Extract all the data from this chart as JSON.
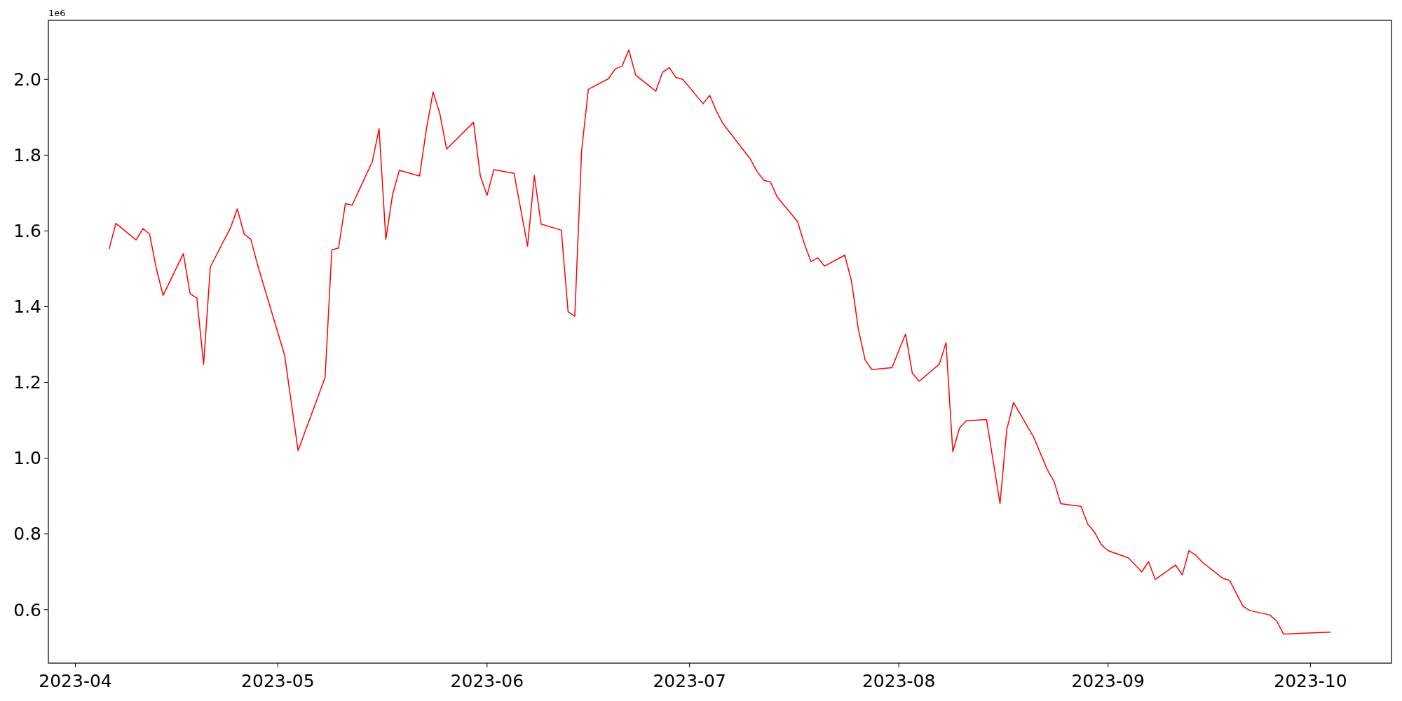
{
  "chart_data": {
    "type": "line",
    "x": [
      "2023-04-06",
      "2023-04-07",
      "2023-04-10",
      "2023-04-11",
      "2023-04-12",
      "2023-04-13",
      "2023-04-14",
      "2023-04-17",
      "2023-04-18",
      "2023-04-19",
      "2023-04-20",
      "2023-04-21",
      "2023-04-24",
      "2023-04-25",
      "2023-04-26",
      "2023-04-27",
      "2023-04-28",
      "2023-05-02",
      "2023-05-04",
      "2023-05-08",
      "2023-05-09",
      "2023-05-10",
      "2023-05-11",
      "2023-05-12",
      "2023-05-15",
      "2023-05-16",
      "2023-05-17",
      "2023-05-18",
      "2023-05-19",
      "2023-05-22",
      "2023-05-23",
      "2023-05-24",
      "2023-05-25",
      "2023-05-26",
      "2023-05-30",
      "2023-05-31",
      "2023-06-01",
      "2023-06-02",
      "2023-06-05",
      "2023-06-07",
      "2023-06-08",
      "2023-06-09",
      "2023-06-12",
      "2023-06-13",
      "2023-06-14",
      "2023-06-15",
      "2023-06-16",
      "2023-06-19",
      "2023-06-20",
      "2023-06-21",
      "2023-06-22",
      "2023-06-23",
      "2023-06-26",
      "2023-06-27",
      "2023-06-28",
      "2023-06-29",
      "2023-06-30",
      "2023-07-03",
      "2023-07-04",
      "2023-07-05",
      "2023-07-06",
      "2023-07-10",
      "2023-07-11",
      "2023-07-12",
      "2023-07-13",
      "2023-07-14",
      "2023-07-17",
      "2023-07-18",
      "2023-07-19",
      "2023-07-20",
      "2023-07-21",
      "2023-07-24",
      "2023-07-25",
      "2023-07-26",
      "2023-07-27",
      "2023-07-28",
      "2023-07-31",
      "2023-08-01",
      "2023-08-02",
      "2023-08-03",
      "2023-08-04",
      "2023-08-07",
      "2023-08-08",
      "2023-08-09",
      "2023-08-10",
      "2023-08-11",
      "2023-08-14",
      "2023-08-16",
      "2023-08-17",
      "2023-08-18",
      "2023-08-21",
      "2023-08-23",
      "2023-08-24",
      "2023-08-25",
      "2023-08-28",
      "2023-08-29",
      "2023-08-30",
      "2023-08-31",
      "2023-09-01",
      "2023-09-04",
      "2023-09-06",
      "2023-09-07",
      "2023-09-08",
      "2023-09-11",
      "2023-09-12",
      "2023-09-13",
      "2023-09-14",
      "2023-09-15",
      "2023-09-18",
      "2023-09-19",
      "2023-09-21",
      "2023-09-22",
      "2023-09-25",
      "2023-09-26",
      "2023-09-27",
      "2023-10-04"
    ],
    "series": [
      {
        "color": "#ff0000",
        "values": [
          1.552,
          1.62,
          1.576,
          1.606,
          1.592,
          1.5,
          1.43,
          1.54,
          1.434,
          1.423,
          1.248,
          1.505,
          1.609,
          1.658,
          1.592,
          1.578,
          1.51,
          1.272,
          1.02,
          1.213,
          1.55,
          1.555,
          1.672,
          1.668,
          1.783,
          1.87,
          1.578,
          1.696,
          1.76,
          1.745,
          1.868,
          1.967,
          1.91,
          1.816,
          1.887,
          1.745,
          1.694,
          1.762,
          1.752,
          1.56,
          1.746,
          1.618,
          1.602,
          1.387,
          1.375,
          1.81,
          1.974,
          2.002,
          2.028,
          2.035,
          2.078,
          2.012,
          1.969,
          2.019,
          2.031,
          2.005,
          2.0,
          1.936,
          1.958,
          1.915,
          1.882,
          1.79,
          1.757,
          1.734,
          1.729,
          1.689,
          1.625,
          1.566,
          1.519,
          1.529,
          1.507,
          1.536,
          1.467,
          1.342,
          1.26,
          1.234,
          1.239,
          1.284,
          1.328,
          1.225,
          1.203,
          1.248,
          1.305,
          1.017,
          1.08,
          1.099,
          1.102,
          0.88,
          1.076,
          1.147,
          1.055,
          0.97,
          0.939,
          0.88,
          0.873,
          0.826,
          0.805,
          0.772,
          0.756,
          0.737,
          0.7,
          0.727,
          0.68,
          0.718,
          0.692,
          0.756,
          0.744,
          0.725,
          0.683,
          0.678,
          0.609,
          0.598,
          0.586,
          0.57,
          0.536,
          0.541
        ]
      }
    ],
    "xlim": [
      "2023-03-28",
      "2023-10-13"
    ],
    "xticks": [
      {
        "value": "2023-04-01",
        "label": "2023-04"
      },
      {
        "value": "2023-05-01",
        "label": "2023-05"
      },
      {
        "value": "2023-06-01",
        "label": "2023-06"
      },
      {
        "value": "2023-07-01",
        "label": "2023-07"
      },
      {
        "value": "2023-08-01",
        "label": "2023-08"
      },
      {
        "value": "2023-09-01",
        "label": "2023-09"
      },
      {
        "value": "2023-10-01",
        "label": "2023-10"
      }
    ],
    "ylim": [
      0.459,
      2.156
    ],
    "yticks": [
      0.6,
      0.8,
      {
        "value": 1,
        "label": "1.0"
      },
      1.2,
      1.4,
      1.6,
      1.8,
      {
        "value": 2,
        "label": "2.0"
      }
    ],
    "annotations": [
      "1e6"
    ],
    "grid": false
  }
}
